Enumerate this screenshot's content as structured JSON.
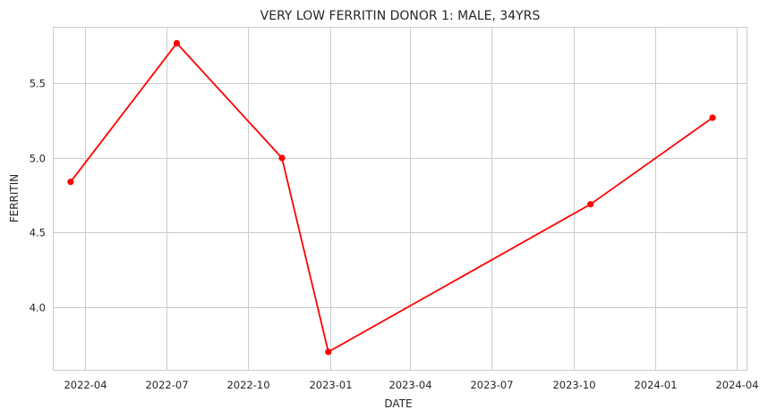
{
  "chart_data": {
    "type": "line",
    "title": "VERY LOW FERRITIN DONOR 1:   MALE, 34YRS",
    "xlabel": "DATE",
    "ylabel": "FERRITIN",
    "x_ticks": [
      "2022-04",
      "2022-07",
      "2022-10",
      "2023-01",
      "2023-04",
      "2023-07",
      "2023-10",
      "2024-01",
      "2024-04"
    ],
    "y_ticks": [
      "4.0",
      "4.5",
      "5.0",
      "5.5"
    ],
    "xlim": [
      "2022-02-24",
      "2024-04-12"
    ],
    "ylim": [
      3.58,
      5.88
    ],
    "grid": true,
    "series": [
      {
        "color": "#ff0000",
        "marker": "circle",
        "x": [
          "2022-03-16",
          "2022-07-13",
          "2022-11-08",
          "2022-12-30",
          "2023-10-20",
          "2024-03-05"
        ],
        "y": [
          4.84,
          5.77,
          5.0,
          3.7,
          4.69,
          5.27
        ]
      }
    ]
  }
}
